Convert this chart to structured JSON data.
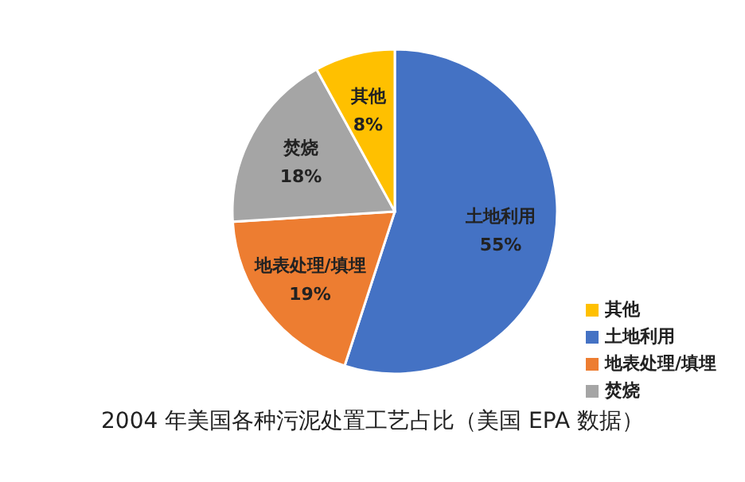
{
  "chart_data": {
    "type": "pie",
    "title": "2004 年美国各种污泥处置工艺占比（美国 EPA 数据）",
    "categories": [
      "土地利用",
      "地表处理/填埋",
      "焚烧",
      "其他"
    ],
    "values": [
      55,
      19,
      18,
      8
    ],
    "value_labels": [
      "55%",
      "19%",
      "18%",
      "8%"
    ],
    "colors": [
      "#4472c4",
      "#ed7d31",
      "#a5a5a5",
      "#ffc000"
    ],
    "legend": "right"
  }
}
